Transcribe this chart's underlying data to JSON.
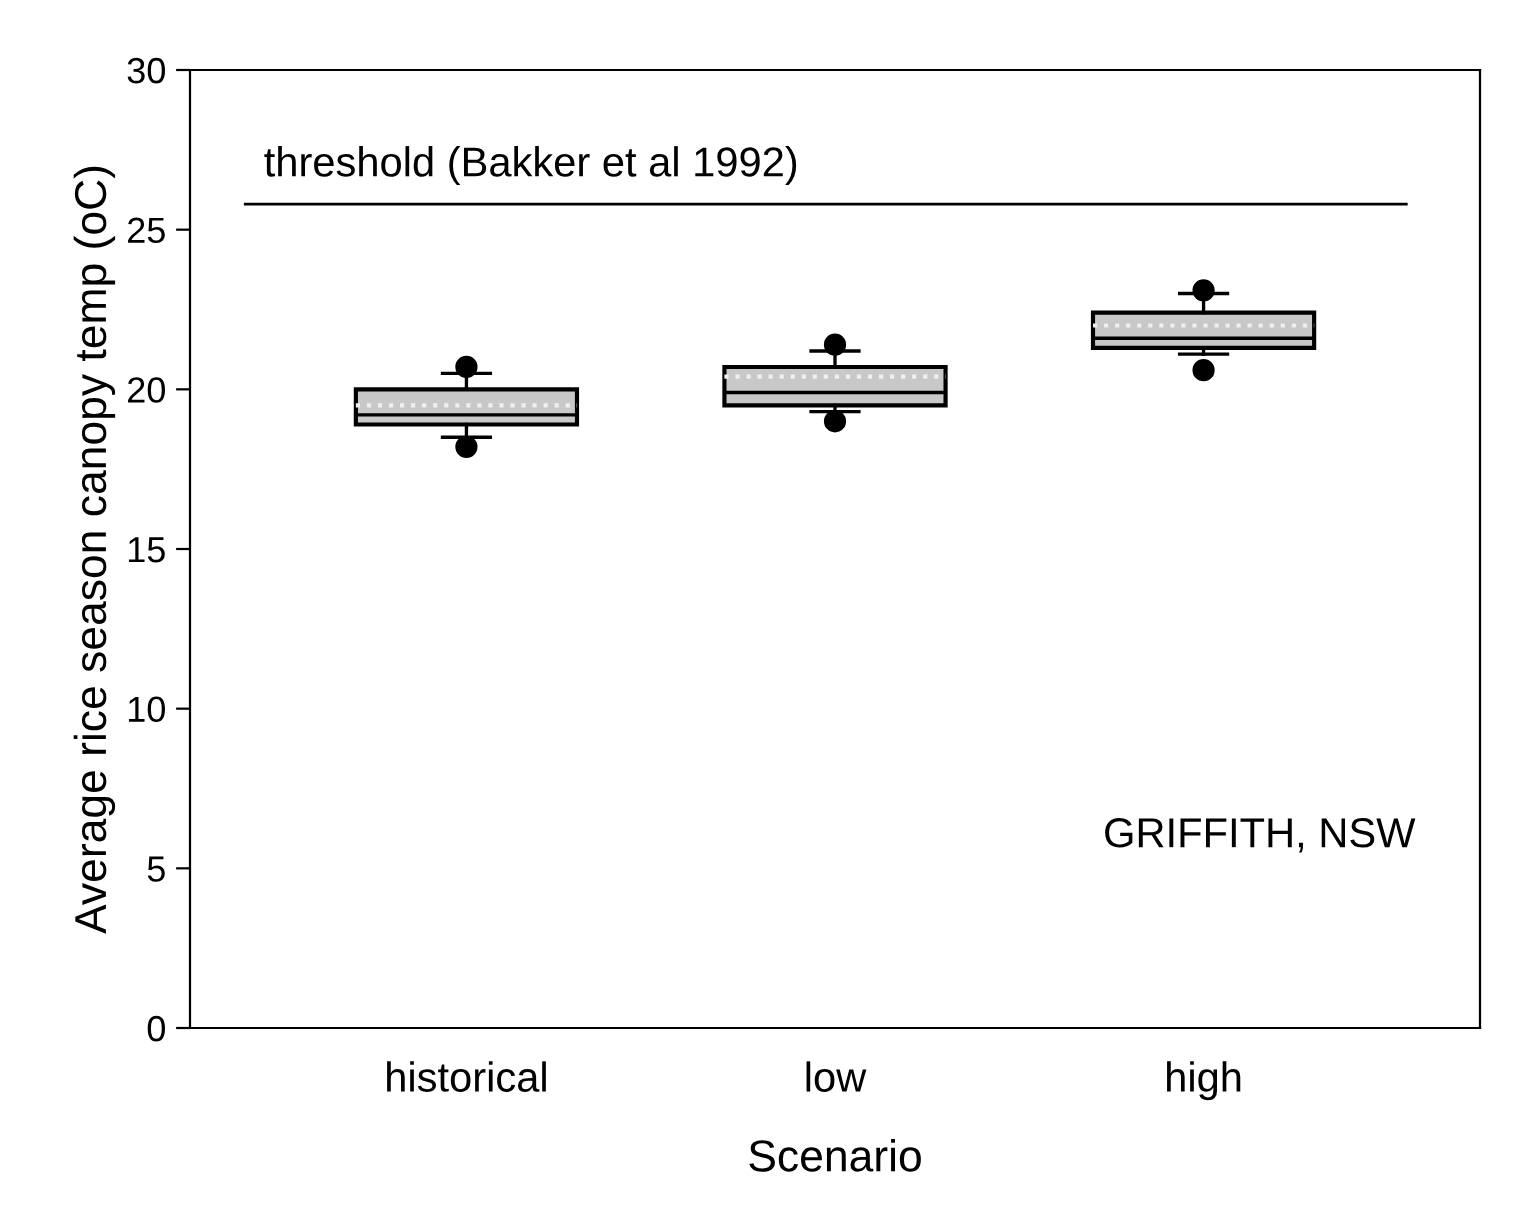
{
  "chart_data": {
    "type": "box",
    "xlabel": "Scenario",
    "ylabel": "Average rice season canopy temp (oC)",
    "categories": [
      "historical",
      "low",
      "high"
    ],
    "boxes": [
      {
        "low": 18.5,
        "q1": 18.9,
        "median": 19.2,
        "q3": 20.0,
        "high": 20.5,
        "mean": 19.5,
        "outliers": [
          18.2,
          20.7
        ]
      },
      {
        "low": 19.3,
        "q1": 19.5,
        "median": 19.9,
        "q3": 20.7,
        "high": 21.2,
        "mean": 20.4,
        "outliers": [
          19.0,
          21.4
        ]
      },
      {
        "low": 21.1,
        "q1": 21.3,
        "median": 21.6,
        "q3": 22.4,
        "high": 23.0,
        "mean": 22.0,
        "outliers": [
          20.6,
          23.1
        ]
      }
    ],
    "color": "#c8c8c8",
    "ylim": [
      0,
      30
    ],
    "yticks": [
      0,
      5,
      10,
      15,
      20,
      25,
      30
    ],
    "grid": false,
    "ref_lines": [
      {
        "axis": "y",
        "value": 25.8,
        "label": "threshold (Bakker et al 1992)",
        "color": "#000000"
      }
    ],
    "annotations": [
      "GRIFFITH, NSW"
    ]
  }
}
